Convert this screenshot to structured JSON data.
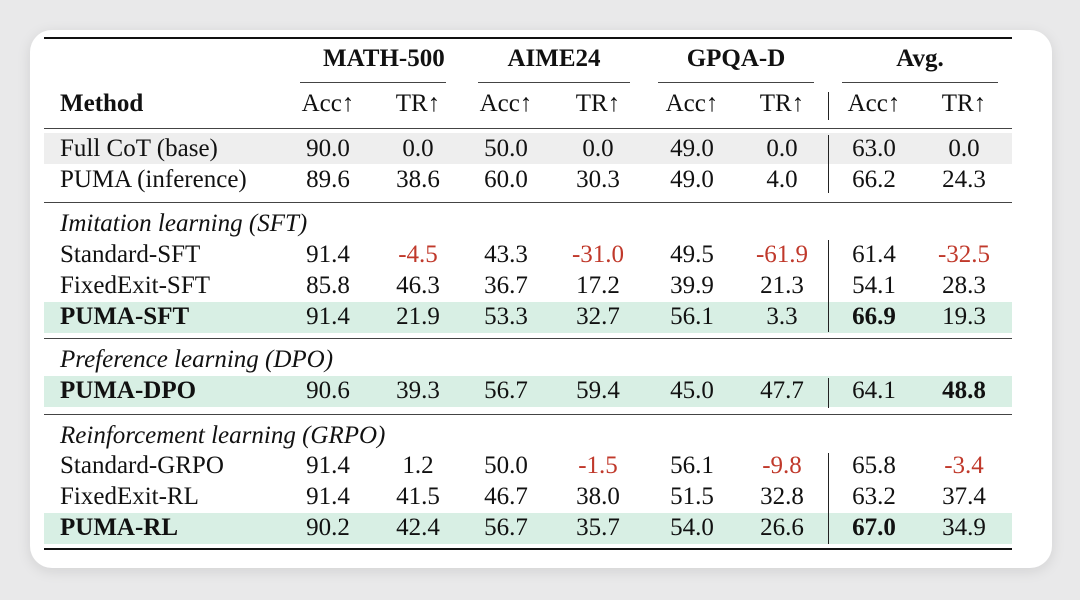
{
  "header": {
    "groups": [
      "MATH-500",
      "AIME24",
      "GPQA-D",
      "Avg."
    ],
    "method_label": "Method",
    "subcolumns": [
      "Acc↑",
      "TR↑",
      "Acc↑",
      "TR↑",
      "Acc↑",
      "TR↑",
      "Acc↑",
      "TR↑"
    ]
  },
  "rows": [
    {
      "method": "Full CoT (base)",
      "values": [
        "90.0",
        "0.0",
        "50.0",
        "0.0",
        "49.0",
        "0.0",
        "63.0",
        "0.0"
      ]
    },
    {
      "method": "PUMA (inference)",
      "values": [
        "89.6",
        "38.6",
        "60.0",
        "30.3",
        "49.0",
        "4.0",
        "66.2",
        "24.3"
      ]
    },
    {
      "section": "Imitation learning (SFT)"
    },
    {
      "method": "Standard-SFT",
      "values": [
        "91.4",
        "-4.5",
        "43.3",
        "-31.0",
        "49.5",
        "-61.9",
        "61.4",
        "-32.5"
      ]
    },
    {
      "method": "FixedExit-SFT",
      "values": [
        "85.8",
        "46.3",
        "36.7",
        "17.2",
        "39.9",
        "21.3",
        "54.1",
        "28.3"
      ]
    },
    {
      "method": "PUMA-SFT",
      "values": [
        "91.4",
        "21.9",
        "53.3",
        "32.7",
        "56.1",
        "3.3",
        "66.9",
        "19.3"
      ]
    },
    {
      "section": "Preference learning (DPO)"
    },
    {
      "method": "PUMA-DPO",
      "values": [
        "90.6",
        "39.3",
        "56.7",
        "59.4",
        "45.0",
        "47.7",
        "64.1",
        "48.8"
      ]
    },
    {
      "section": "Reinforcement learning (GRPO)"
    },
    {
      "method": "Standard-GRPO",
      "values": [
        "91.4",
        "1.2",
        "50.0",
        "-1.5",
        "56.1",
        "-9.8",
        "65.8",
        "-3.4"
      ]
    },
    {
      "method": "FixedExit-RL",
      "values": [
        "91.4",
        "41.5",
        "46.7",
        "38.0",
        "51.5",
        "32.8",
        "63.2",
        "37.4"
      ]
    },
    {
      "method": "PUMA-RL",
      "values": [
        "90.2",
        "42.4",
        "56.7",
        "35.7",
        "54.0",
        "26.6",
        "67.0",
        "34.9"
      ]
    }
  ],
  "colors": {
    "negative": "#c0392b",
    "highlight_green": "#d8efe4",
    "highlight_gray": "#eeeeee"
  }
}
